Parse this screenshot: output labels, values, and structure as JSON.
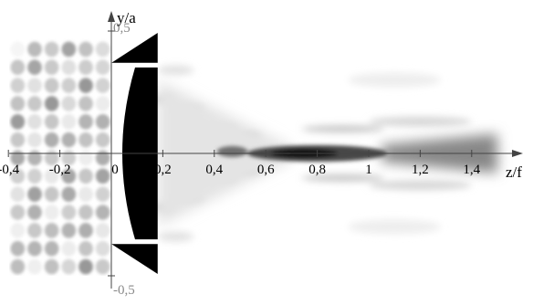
{
  "chart_data": {
    "type": "heatmap",
    "colormap": "grayscale, darker = higher intensity",
    "xlabel": "z/f",
    "ylabel": "y/a",
    "xlim": [
      -0.5,
      1.5
    ],
    "ylim": [
      -0.5,
      0.5
    ],
    "xticks": [
      "-0,4",
      "-0,2",
      "0",
      "0,2",
      "0,4",
      "0,6",
      "0,8",
      "1",
      "1,2",
      "1,4"
    ],
    "xtick_values": [
      -0.4,
      -0.2,
      0,
      0.2,
      0.4,
      0.6,
      0.8,
      1.0,
      1.2,
      1.4
    ],
    "yticks": [
      "0,5",
      "-0,5"
    ],
    "ytick_values": [
      0.5,
      -0.5
    ],
    "lens": {
      "type": "plano-convex",
      "color": "black",
      "flat_face_z": 0,
      "back_face_z": 0.18,
      "half_aperture_y": 0.5,
      "edge_bevel_from_y": 0.37
    },
    "focal_spot": {
      "z_center": 0.75,
      "z_range": [
        0.55,
        1.05
      ],
      "peak_intensity": "dark"
    },
    "beam_tail": {
      "z_range": [
        1.05,
        1.5
      ],
      "intensity": "medium"
    },
    "interference_region_z": [
      -0.45,
      0
    ]
  }
}
